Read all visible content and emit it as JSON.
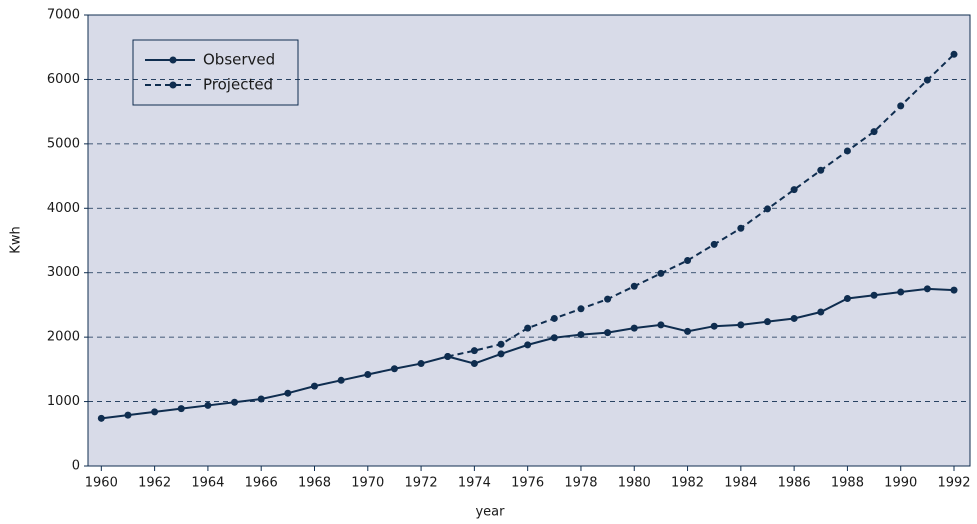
{
  "chart_data": {
    "type": "line",
    "x": [
      1960,
      1961,
      1962,
      1963,
      1964,
      1965,
      1966,
      1967,
      1968,
      1969,
      1970,
      1971,
      1972,
      1973,
      1974,
      1975,
      1976,
      1977,
      1978,
      1979,
      1980,
      1981,
      1982,
      1983,
      1984,
      1985,
      1986,
      1987,
      1988,
      1989,
      1990,
      1991,
      1992
    ],
    "series": [
      {
        "name": "Observed",
        "color": "#0f2d4f",
        "linestyle": "solid",
        "values": [
          740,
          790,
          840,
          890,
          940,
          990,
          1040,
          1130,
          1240,
          1330,
          1420,
          1510,
          1590,
          1700,
          1590,
          1740,
          1880,
          1990,
          2040,
          2070,
          2140,
          2190,
          2090,
          2170,
          2190,
          2240,
          2290,
          2390,
          2600,
          2650,
          2700,
          2750,
          2730
        ]
      },
      {
        "name": "Projected",
        "color": "#0f2d4f",
        "linestyle": "dashed",
        "values": [
          null,
          null,
          null,
          null,
          null,
          null,
          null,
          null,
          null,
          null,
          null,
          null,
          null,
          1700,
          1790,
          1890,
          2140,
          2290,
          2440,
          2590,
          2790,
          2990,
          3190,
          3440,
          3690,
          3990,
          4290,
          4590,
          4890,
          5190,
          5590,
          5990,
          6390
        ]
      }
    ],
    "xlabel": "year",
    "ylabel": "Kwh",
    "xlim": [
      1959.5,
      1992.6
    ],
    "ylim": [
      0,
      7000
    ],
    "xticks": [
      1960,
      1962,
      1964,
      1966,
      1968,
      1970,
      1972,
      1974,
      1976,
      1978,
      1980,
      1982,
      1984,
      1986,
      1988,
      1990,
      1992
    ],
    "yticks": [
      0,
      1000,
      2000,
      3000,
      4000,
      5000,
      6000,
      7000
    ],
    "grid": true,
    "legend": "upper left",
    "background": "#d8dbe8"
  }
}
